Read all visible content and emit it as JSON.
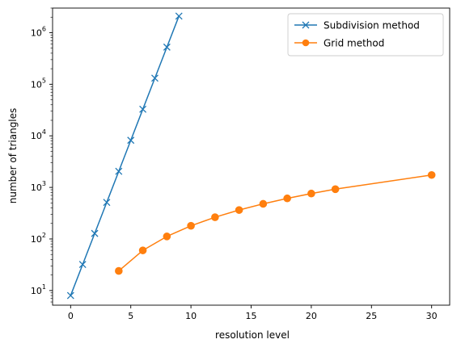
{
  "chart_data": {
    "type": "line",
    "title": "",
    "xlabel": "resolution level",
    "ylabel": "number of triangles",
    "yscale": "log",
    "xlim": [
      -1.5,
      31.5
    ],
    "ylim": [
      5.2,
      3000000
    ],
    "xticks": [
      0,
      5,
      10,
      15,
      20,
      25,
      30
    ],
    "xtick_labels": [
      "0",
      "5",
      "10",
      "15",
      "20",
      "25",
      "30"
    ],
    "yticks": [
      10,
      100,
      1000,
      10000,
      100000,
      1000000
    ],
    "ytick_labels": [
      {
        "base": "10",
        "exp": "1"
      },
      {
        "base": "10",
        "exp": "2"
      },
      {
        "base": "10",
        "exp": "3"
      },
      {
        "base": "10",
        "exp": "4"
      },
      {
        "base": "10",
        "exp": "5"
      },
      {
        "base": "10",
        "exp": "6"
      }
    ],
    "grid": false,
    "legend_position": "top-right",
    "series": [
      {
        "name": "Subdivision method",
        "color": "#1f77b4",
        "marker": "x",
        "x": [
          0,
          1,
          2,
          3,
          4,
          5,
          6,
          7,
          8,
          9
        ],
        "y": [
          8,
          32,
          128,
          512,
          2048,
          8192,
          32768,
          131072,
          524288,
          2097152
        ]
      },
      {
        "name": "Grid method",
        "color": "#ff7f0e",
        "marker": "o",
        "x": [
          4,
          6,
          8,
          10,
          12,
          14,
          16,
          18,
          20,
          22,
          30
        ],
        "y": [
          24,
          60,
          112,
          180,
          264,
          364,
          480,
          612,
          760,
          924,
          1740
        ]
      }
    ]
  }
}
